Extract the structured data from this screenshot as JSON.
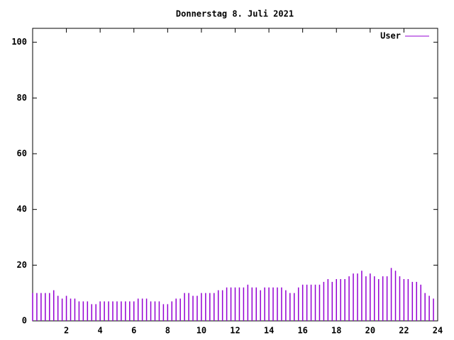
{
  "chart_data": {
    "type": "impulses",
    "title": "Donnerstag 8. Juli 2021",
    "x": [
      0,
      0.25,
      0.5,
      0.75,
      1,
      1.25,
      1.5,
      1.75,
      2,
      2.25,
      2.5,
      2.75,
      3,
      3.25,
      3.5,
      3.75,
      4,
      4.25,
      4.5,
      4.75,
      5,
      5.25,
      5.5,
      5.75,
      6,
      6.25,
      6.5,
      6.75,
      7,
      7.25,
      7.5,
      7.75,
      8,
      8.25,
      8.5,
      8.75,
      9,
      9.25,
      9.5,
      9.75,
      10,
      10.25,
      10.5,
      10.75,
      11,
      11.25,
      11.5,
      11.75,
      12,
      12.25,
      12.5,
      12.75,
      13,
      13.25,
      13.5,
      13.75,
      14,
      14.25,
      14.5,
      14.75,
      15,
      15.25,
      15.5,
      15.75,
      16,
      16.25,
      16.5,
      16.75,
      17,
      17.25,
      17.5,
      17.75,
      18,
      18.25,
      18.5,
      18.75,
      19,
      19.25,
      19.5,
      19.75,
      20,
      20.25,
      20.5,
      20.75,
      21,
      21.25,
      21.5,
      21.75,
      22,
      22.25,
      22.5,
      22.75,
      23,
      23.25,
      23.5,
      23.75
    ],
    "series": [
      {
        "name": "User",
        "color": "#9400d3",
        "values": [
          10,
          10,
          10,
          10,
          10,
          11,
          9,
          8,
          9,
          8,
          8,
          7,
          7,
          7,
          6,
          6,
          7,
          7,
          7,
          7,
          7,
          7,
          7,
          7,
          7,
          8,
          8,
          8,
          7,
          7,
          7,
          6,
          6,
          7,
          8,
          8,
          10,
          10,
          9,
          9,
          10,
          10,
          10,
          10,
          11,
          11,
          12,
          12,
          12,
          12,
          12,
          13,
          12,
          12,
          11,
          12,
          12,
          12,
          12,
          12,
          11,
          10,
          10,
          12,
          13,
          13,
          13,
          13,
          13,
          14,
          15,
          14,
          15,
          15,
          15,
          16,
          17,
          17,
          18,
          16,
          17,
          16,
          15,
          16,
          16,
          19,
          18,
          16,
          15,
          15,
          14,
          14,
          13,
          10,
          9,
          8
        ]
      }
    ],
    "xlim": [
      0,
      24
    ],
    "xticks": [
      2,
      4,
      6,
      8,
      10,
      12,
      14,
      16,
      18,
      20,
      22,
      24
    ],
    "ylim": [
      0,
      105
    ],
    "yticks": [
      0,
      20,
      40,
      60,
      80,
      100
    ],
    "legend": "upper right"
  }
}
